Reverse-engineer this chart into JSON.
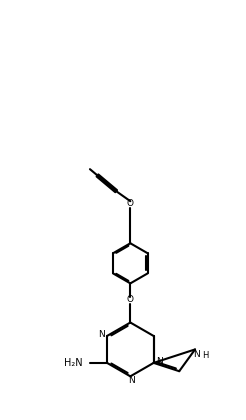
{
  "bg_color": "#ffffff",
  "line_color": "#000000",
  "line_width": 1.5,
  "figsize": [
    2.46,
    4.2
  ],
  "dpi": 100,
  "xlim": [
    0,
    10
  ],
  "ylim": [
    0,
    17
  ]
}
